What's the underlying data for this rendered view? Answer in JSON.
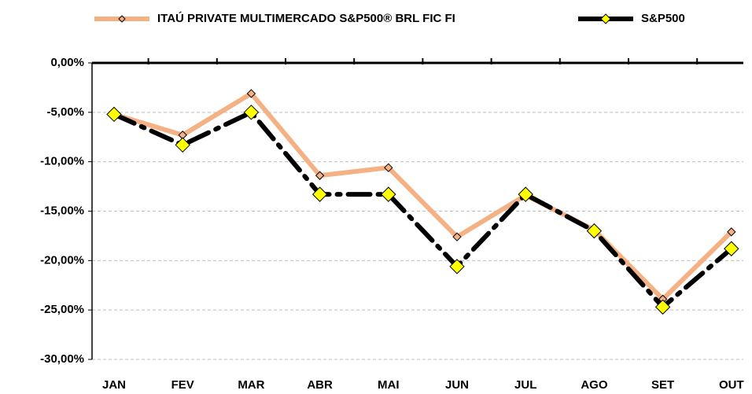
{
  "chart_data": {
    "type": "line",
    "categories": [
      "JAN",
      "FEV",
      "MAR",
      "ABR",
      "MAI",
      "JUN",
      "JUL",
      "AGO",
      "SET",
      "OUT"
    ],
    "series": [
      {
        "name": "ITAÚ PRIVATE MULTIMERCADO S&P500® BRL FIC FI",
        "color": "#f4b183",
        "marker_color": "#f4b183",
        "values": [
          -5.2,
          -7.3,
          -3.1,
          -11.4,
          -10.6,
          -17.6,
          -13.4,
          -16.9,
          -23.9,
          -17.1
        ]
      },
      {
        "name": "S&P500",
        "color": "#000000",
        "marker_color": "#ffff00",
        "values": [
          -5.2,
          -8.3,
          -5.0,
          -13.3,
          -13.3,
          -20.6,
          -13.3,
          -17.0,
          -24.7,
          -18.8
        ]
      }
    ],
    "ylim": [
      -30,
      0
    ],
    "yticks": [
      {
        "value": 0,
        "label": "0,00%"
      },
      {
        "value": -5,
        "label": "-5,00%"
      },
      {
        "value": -10,
        "label": "-10,00%"
      },
      {
        "value": -15,
        "label": "-15,00%"
      },
      {
        "value": -20,
        "label": "-20,00%"
      },
      {
        "value": -25,
        "label": "-25,00%"
      },
      {
        "value": -30,
        "label": "-30,00%"
      }
    ],
    "grid": true
  }
}
